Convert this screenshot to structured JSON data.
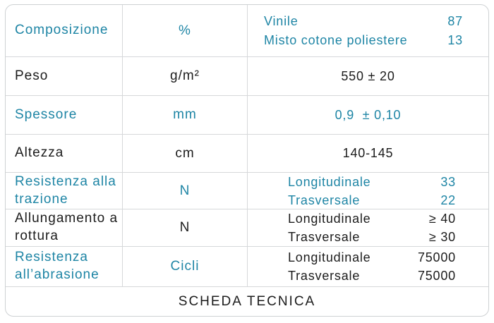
{
  "colors": {
    "accent": "#1e85a5",
    "text": "#1c1c1c",
    "grid": "#d6d8da"
  },
  "rows": [
    {
      "label": "Composizione",
      "unit": "%",
      "entries": [
        {
          "name": "Vinile",
          "value": "87"
        },
        {
          "name": "Misto cotone poliestere",
          "value": "13"
        }
      ]
    },
    {
      "label": "Peso",
      "unit": "g/m²",
      "value": "550 ± 20"
    },
    {
      "label": "Spessore",
      "unit": "mm",
      "value": "0,9  ± 0,10"
    },
    {
      "label": "Altezza",
      "unit": "cm",
      "value": "140-145"
    },
    {
      "label": "Resistenza alla trazione",
      "unit": "N",
      "entries": [
        {
          "name": "Longitudinale",
          "value": "33"
        },
        {
          "name": "Trasversale",
          "value": "22"
        }
      ]
    },
    {
      "label": "Allungamento a rottura",
      "unit": "N",
      "entries": [
        {
          "name": "Longitudinale",
          "value": "≥ 40"
        },
        {
          "name": "Trasversale",
          "value": "≥ 30"
        }
      ]
    },
    {
      "label": "Resistenza all’abrasione",
      "unit": "Cicli",
      "entries": [
        {
          "name": "Longitudinale",
          "value": "75000"
        },
        {
          "name": "Trasversale",
          "value": "75000"
        }
      ]
    }
  ],
  "footer": "SCHEDA TECNICA"
}
